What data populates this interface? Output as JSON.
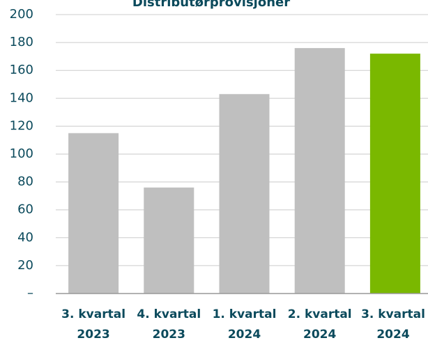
{
  "chart_data": {
    "type": "bar",
    "title": "Distributørprovisjoner",
    "categories": [
      "3. kvartal 2023",
      "4. kvartal 2023",
      "1. kvartal 2024",
      "2. kvartal 2024",
      "3. kvartal 2024"
    ],
    "values": [
      115,
      76,
      143,
      176,
      172
    ],
    "colors": [
      "#bfbfbf",
      "#bfbfbf",
      "#bfbfbf",
      "#bfbfbf",
      "#7ab800"
    ],
    "ylim": [
      0,
      200
    ],
    "yticks": [
      {
        "value": 0,
        "label": "–"
      },
      20,
      40,
      60,
      80,
      100,
      120,
      140,
      160,
      180,
      200
    ],
    "grid": true
  }
}
